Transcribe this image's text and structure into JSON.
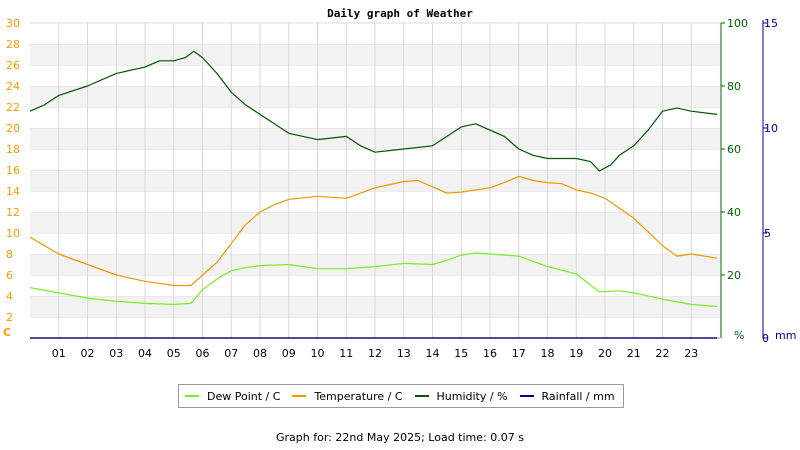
{
  "chart_data": {
    "type": "line",
    "title": "Daily graph of Weather",
    "x_tick_labels": [
      "01",
      "02",
      "03",
      "04",
      "05",
      "06",
      "07",
      "08",
      "09",
      "10",
      "11",
      "12",
      "13",
      "14",
      "15",
      "16",
      "17",
      "18",
      "19",
      "20",
      "21",
      "22",
      "23"
    ],
    "axes": {
      "left": {
        "unit_label": "C",
        "ylim": [
          0,
          30
        ],
        "ticks": [
          0,
          2,
          4,
          6,
          8,
          10,
          12,
          14,
          16,
          18,
          20,
          22,
          24,
          26,
          28,
          30
        ],
        "color": "#ff9900"
      },
      "humidity": {
        "unit_label": "%",
        "ylim": [
          0,
          100
        ],
        "ticks": [
          0,
          20,
          40,
          60,
          80,
          100
        ],
        "color": "#006600"
      },
      "rain": {
        "unit_label": "mm",
        "ylim": [
          0,
          15
        ],
        "ticks": [
          0,
          5,
          10,
          15
        ],
        "color": "#000099"
      }
    },
    "grid": true,
    "legend_position": "bottom",
    "series": [
      {
        "name": "Dew Point / C",
        "axis": "left",
        "color": "#77ee22",
        "points": [
          [
            0,
            4.8
          ],
          [
            1,
            4.3
          ],
          [
            2,
            3.8
          ],
          [
            3,
            3.5
          ],
          [
            4,
            3.3
          ],
          [
            5,
            3.2
          ],
          [
            5.6,
            3.3
          ],
          [
            6,
            4.6
          ],
          [
            6.6,
            5.8
          ],
          [
            7,
            6.4
          ],
          [
            7.5,
            6.7
          ],
          [
            8,
            6.9
          ],
          [
            9,
            7.0
          ],
          [
            10,
            6.6
          ],
          [
            11,
            6.6
          ],
          [
            12,
            6.8
          ],
          [
            13,
            7.1
          ],
          [
            14,
            7.0
          ],
          [
            14.5,
            7.4
          ],
          [
            15,
            7.9
          ],
          [
            15.5,
            8.1
          ],
          [
            16,
            8.0
          ],
          [
            17,
            7.8
          ],
          [
            18,
            6.8
          ],
          [
            19,
            6.1
          ],
          [
            19.8,
            4.4
          ],
          [
            20.5,
            4.5
          ],
          [
            21,
            4.3
          ],
          [
            22,
            3.7
          ],
          [
            23,
            3.2
          ],
          [
            23.9,
            3.0
          ]
        ]
      },
      {
        "name": "Temperature / C",
        "axis": "left",
        "color": "#ee9900",
        "points": [
          [
            0,
            9.6
          ],
          [
            1,
            8.0
          ],
          [
            2,
            7.0
          ],
          [
            3,
            6.0
          ],
          [
            4,
            5.4
          ],
          [
            5,
            5.0
          ],
          [
            5.6,
            5.0
          ],
          [
            6,
            6.0
          ],
          [
            6.5,
            7.2
          ],
          [
            7,
            9.0
          ],
          [
            7.5,
            10.8
          ],
          [
            8,
            12.0
          ],
          [
            8.5,
            12.7
          ],
          [
            9,
            13.2
          ],
          [
            10,
            13.5
          ],
          [
            10.5,
            13.4
          ],
          [
            11,
            13.3
          ],
          [
            12,
            14.3
          ],
          [
            13,
            14.9
          ],
          [
            13.5,
            15.0
          ],
          [
            14,
            14.4
          ],
          [
            14.5,
            13.8
          ],
          [
            15,
            13.9
          ],
          [
            16,
            14.3
          ],
          [
            16.5,
            14.8
          ],
          [
            17,
            15.4
          ],
          [
            17.5,
            15.0
          ],
          [
            18,
            14.8
          ],
          [
            18.5,
            14.7
          ],
          [
            19,
            14.1
          ],
          [
            19.5,
            13.8
          ],
          [
            20,
            13.3
          ],
          [
            21,
            11.4
          ],
          [
            22,
            8.8
          ],
          [
            22.5,
            7.8
          ],
          [
            23,
            8.0
          ],
          [
            23.9,
            7.6
          ]
        ]
      },
      {
        "name": "Humidity / %",
        "axis": "humidity",
        "color": "#005500",
        "points": [
          [
            0,
            72
          ],
          [
            0.5,
            74
          ],
          [
            1,
            77
          ],
          [
            2,
            80
          ],
          [
            3,
            84
          ],
          [
            4,
            86
          ],
          [
            4.5,
            88
          ],
          [
            5,
            88
          ],
          [
            5.4,
            89
          ],
          [
            5.7,
            91
          ],
          [
            6,
            89
          ],
          [
            6.5,
            84
          ],
          [
            7,
            78
          ],
          [
            7.5,
            74
          ],
          [
            8,
            71
          ],
          [
            8.5,
            68
          ],
          [
            9,
            65
          ],
          [
            9.5,
            64
          ],
          [
            10,
            63
          ],
          [
            11,
            64
          ],
          [
            11.5,
            61
          ],
          [
            12,
            59
          ],
          [
            13,
            60
          ],
          [
            14,
            61
          ],
          [
            14.5,
            64
          ],
          [
            15,
            67
          ],
          [
            15.5,
            68
          ],
          [
            16,
            66
          ],
          [
            16.5,
            64
          ],
          [
            17,
            60
          ],
          [
            17.5,
            58
          ],
          [
            18,
            57
          ],
          [
            19,
            57
          ],
          [
            19.5,
            56
          ],
          [
            19.8,
            53
          ],
          [
            20.2,
            55
          ],
          [
            20.5,
            58
          ],
          [
            21,
            61
          ],
          [
            21.5,
            66
          ],
          [
            22,
            72
          ],
          [
            22.5,
            73
          ],
          [
            23,
            72
          ],
          [
            23.9,
            71
          ]
        ]
      },
      {
        "name": "Rainfall / mm",
        "axis": "rain",
        "color": "#000099",
        "points": [
          [
            0,
            0
          ],
          [
            23.9,
            0
          ]
        ]
      }
    ]
  },
  "footer": {
    "date_label": "Graph for:",
    "date": "22nd May 2025",
    "load_label": "Load time:",
    "load_time": "0.07 s"
  }
}
